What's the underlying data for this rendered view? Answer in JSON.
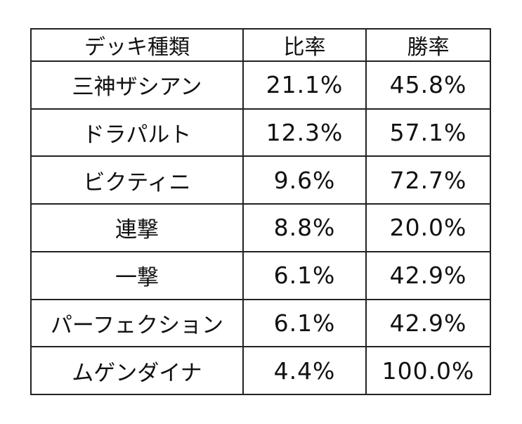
{
  "table": {
    "headers": {
      "deck_type": "デッキ種類",
      "usage_rate": "比率",
      "win_rate": "勝率"
    },
    "rows": [
      {
        "deck": "三神ザシアン",
        "usage_rate": "21.1%",
        "win_rate": "45.8%"
      },
      {
        "deck": "ドラパルト",
        "usage_rate": "12.3%",
        "win_rate": "57.1%"
      },
      {
        "deck": "ビクティニ",
        "usage_rate": "9.6%",
        "win_rate": "72.7%"
      },
      {
        "deck": "連撃",
        "usage_rate": "8.8%",
        "win_rate": "20.0%"
      },
      {
        "deck": "一撃",
        "usage_rate": "6.1%",
        "win_rate": "42.9%"
      },
      {
        "deck": "パーフェクション",
        "usage_rate": "6.1%",
        "win_rate": "42.9%"
      },
      {
        "deck": "ムゲンダイナ",
        "usage_rate": "4.4%",
        "win_rate": "100.0%"
      }
    ]
  }
}
